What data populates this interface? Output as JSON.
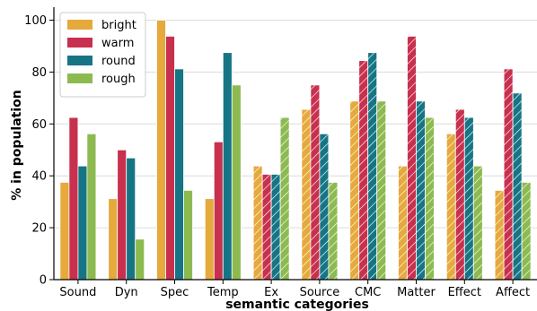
{
  "chart_data": {
    "type": "bar",
    "xlabel": "semantic categories",
    "ylabel": "% in population",
    "ylim": [
      0,
      105
    ],
    "yticks": [
      "0",
      "20",
      "40",
      "60",
      "80",
      "100"
    ],
    "grid": "horizontal",
    "legend_position": "top-left",
    "categories": [
      "Sound",
      "Dyn",
      "Spec",
      "Temp",
      "Ex",
      "Source",
      "CMC",
      "Matter",
      "Effect",
      "Affect"
    ],
    "hatched_categories": [
      "Ex",
      "Source",
      "CMC",
      "Matter",
      "Effect",
      "Affect"
    ],
    "series": [
      {
        "name": "bright",
        "color": "#E5A93C",
        "values": [
          37.5,
          31.2,
          100.0,
          31.2,
          43.8,
          65.6,
          68.8,
          43.8,
          56.2,
          34.4
        ]
      },
      {
        "name": "warm",
        "color": "#C8304E",
        "values": [
          62.5,
          50.0,
          93.8,
          53.1,
          40.6,
          75.0,
          84.4,
          93.8,
          65.6,
          81.2
        ]
      },
      {
        "name": "round",
        "color": "#157584",
        "values": [
          43.8,
          46.9,
          81.2,
          87.5,
          40.6,
          56.2,
          87.5,
          68.8,
          62.5,
          71.9
        ]
      },
      {
        "name": "rough",
        "color": "#8DBA50",
        "values": [
          56.2,
          15.6,
          34.4,
          75.0,
          62.5,
          37.5,
          68.8,
          62.5,
          43.8,
          37.5
        ]
      }
    ]
  }
}
